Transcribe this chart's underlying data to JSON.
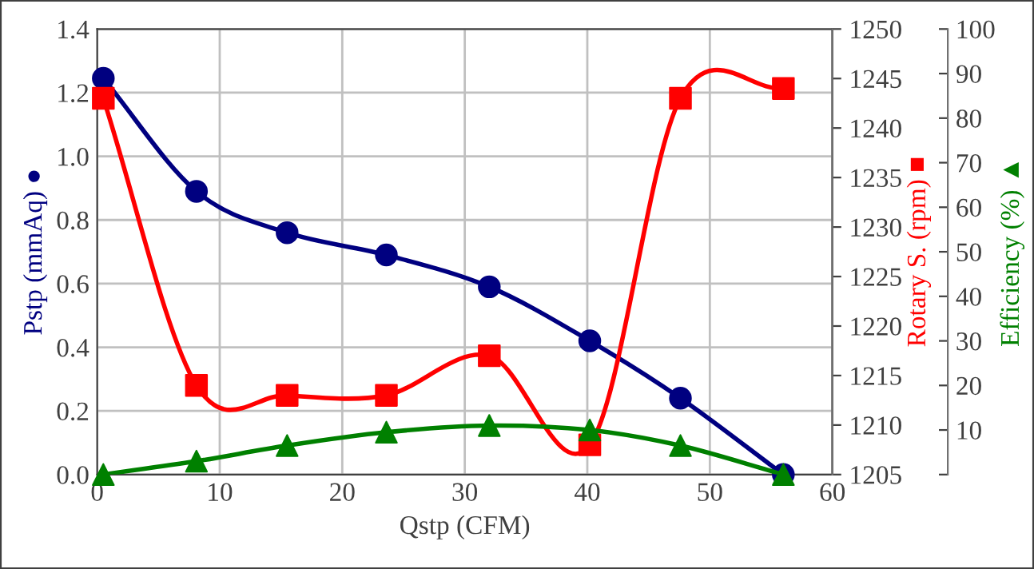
{
  "chart_data": {
    "type": "line",
    "xlabel": "Qstp (CFM)",
    "ylabel": "Pstp (mmAq) ●",
    "y2label": "Rotary S. (rpm) ■",
    "y3label": "Efficiency (%) ▲",
    "x": [
      0.5,
      8.1,
      15.5,
      23.6,
      32,
      40.2,
      47.6,
      56
    ],
    "series": [
      {
        "color": "#000080",
        "marker": "circle",
        "values": [
          1.245,
          0.89,
          0.76,
          0.69,
          0.59,
          0.42,
          0.24,
          0.0
        ]
      },
      {
        "color": "#ff0000",
        "marker": "square",
        "axis": "y2",
        "values": [
          1243,
          1214,
          1213,
          1213,
          1217,
          1208,
          1243,
          1244
        ]
      },
      {
        "color": "#008000",
        "marker": "triangle",
        "axis": "y3",
        "values": [
          0,
          3,
          6.5,
          9.5,
          11,
          10,
          6.5,
          0
        ]
      }
    ],
    "xlim": [
      0,
      60
    ],
    "xticks": [
      0,
      10,
      20,
      30,
      40,
      50,
      60
    ],
    "ylim": [
      0,
      1.4
    ],
    "yticks": [
      {
        "value": 0,
        "label": "0.0"
      },
      {
        "value": 0.2,
        "label": "0.2"
      },
      {
        "value": 0.4,
        "label": "0.4"
      },
      {
        "value": 0.6,
        "label": "0.6"
      },
      {
        "value": 0.8,
        "label": "0.8"
      },
      {
        "value": 1.0,
        "label": "1.0"
      },
      {
        "value": 1.2,
        "label": "1.2"
      },
      {
        "value": 1.4,
        "label": "1.4"
      }
    ],
    "y2lim": [
      1205,
      1250
    ],
    "y2ticks": [
      1205,
      1210,
      1215,
      1220,
      1225,
      1230,
      1235,
      1240,
      1245,
      1250
    ],
    "y3lim": [
      0,
      100
    ],
    "y3ticks": [
      {
        "value": 0,
        "label": null
      },
      10,
      20,
      30,
      40,
      50,
      60,
      70,
      80,
      90,
      100
    ],
    "grid": true,
    "line_style": "solid"
  }
}
